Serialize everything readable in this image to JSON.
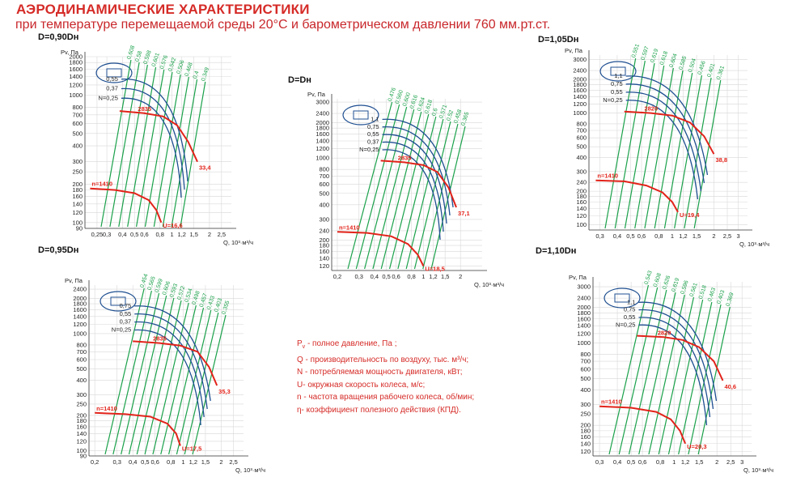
{
  "page": {
    "title": "АЭРОДИНАМИЧЕСКИЕ ХАРАКТЕРИСТИКИ",
    "subtitle": "при температуре перемещаемой среды 20°С и барометрическом давлении 760 мм.рт.ст."
  },
  "colors": {
    "red": "#e2231a",
    "blue": "#1f4f91",
    "green": "#1aa14a",
    "grid": "#d8d8d8",
    "text_red": "#d52b27"
  },
  "legend": {
    "items": [
      "P",
      "v",
      " - полное давление, Па ;",
      "Q - производительность по воздуху, тыс. м³/ч;",
      "N - потребляемая мощность двигателя, кВт;",
      "U- окружная скорость колеса, м/с;",
      "n - частота вращения рабочего колеса, об/мин;",
      "η- коэффициент полезного действия (КПД)."
    ]
  },
  "chart_data": [
    {
      "type": "line",
      "title": "D=0,90Dн",
      "xlabel": "Q, 10³·м³/ч",
      "ylabel": "Pv, Па",
      "xscale": "log",
      "yscale": "log",
      "xlim": [
        0.2,
        3.0
      ],
      "ylim": [
        90,
        2000
      ],
      "xticks": [
        "0,25",
        "0,3",
        "0,4",
        "0,5",
        "0,6",
        "0,8",
        "1",
        "1,2",
        "1,5",
        "2",
        "2,5"
      ],
      "yticks": [
        "2000",
        "1800",
        "1600",
        "1400",
        "1200",
        "1000",
        "800",
        "700",
        "600",
        "500",
        "400",
        "300",
        "250",
        "200",
        "180",
        "160",
        "140",
        "120",
        "100",
        "90"
      ],
      "power_labels": [
        "N=0,25",
        "0,37",
        "0,55"
      ],
      "efficiency_labels": [
        "0,608",
        "0,58",
        "0,598",
        "0,601",
        "0,576",
        "0,542",
        "0,506",
        "0,468",
        "0,4",
        "0,349"
      ],
      "n_high": "2835",
      "n_low": "n=1410",
      "u_high": "33,4",
      "u_low": "U=16,6",
      "series": [
        {
          "name": "2835",
          "x": [
            0.38,
            0.6,
            0.85,
            1.1,
            1.35,
            1.6
          ],
          "y": [
            750,
            720,
            680,
            580,
            430,
            300
          ]
        },
        {
          "name": "n=1410",
          "x": [
            0.22,
            0.35,
            0.5,
            0.65,
            0.75,
            0.82
          ],
          "y": [
            185,
            180,
            170,
            150,
            125,
            100
          ]
        }
      ]
    },
    {
      "type": "line",
      "title": "D=Dн",
      "xlabel": "Q, 10³·м³/ч",
      "ylabel": "Pv, Па",
      "xscale": "log",
      "yscale": "log",
      "xlim": [
        0.18,
        3.0
      ],
      "ylim": [
        110,
        3200
      ],
      "xticks": [
        "0,2",
        "0,3",
        "0,4",
        "0,5",
        "0,6",
        "0,8",
        "1",
        "1,2",
        "1,5",
        "2"
      ],
      "yticks": [
        "3000",
        "2400",
        "2000",
        "1800",
        "1600",
        "1400",
        "1200",
        "1000",
        "800",
        "700",
        "600",
        "500",
        "400",
        "300",
        "240",
        "200",
        "180",
        "160",
        "140",
        "120"
      ],
      "power_labels": [
        "N=0,25",
        "0,37",
        "0,55",
        "0,75",
        "1,1"
      ],
      "efficiency_labels": [
        "0,476",
        "0,560",
        "0,600",
        "0,616",
        "0,624",
        "0,618",
        "0,6",
        "0,571",
        "0,52",
        "0,458",
        "0,365"
      ],
      "n_high": "2835",
      "n_low": "n=1410",
      "u_high": "37,1",
      "u_low": "U=18,5",
      "series": [
        {
          "name": "2835",
          "x": [
            0.45,
            0.7,
            1.0,
            1.3,
            1.6,
            1.85
          ],
          "y": [
            950,
            920,
            870,
            760,
            560,
            380
          ]
        },
        {
          "name": "n=1410",
          "x": [
            0.2,
            0.35,
            0.55,
            0.75,
            0.9,
            1.0
          ],
          "y": [
            235,
            230,
            215,
            185,
            150,
            120
          ]
        }
      ]
    },
    {
      "type": "line",
      "title": "D=1,05Dн",
      "xlabel": "Q, 10³·м³/ч",
      "ylabel": "Pv, Па",
      "xscale": "log",
      "yscale": "log",
      "xlim": [
        0.25,
        3.5
      ],
      "ylim": [
        90,
        3300
      ],
      "xticks": [
        "0,3",
        "0,4",
        "0,5",
        "0,6",
        "0,8",
        "1",
        "1,2",
        "1,5",
        "2",
        "2,5",
        "3"
      ],
      "yticks": [
        "3000",
        "2400",
        "2000",
        "1800",
        "1600",
        "1400",
        "1200",
        "1000",
        "800",
        "700",
        "600",
        "500",
        "400",
        "300",
        "240",
        "200",
        "180",
        "160",
        "140",
        "120",
        "100"
      ],
      "power_labels": [
        "N=0,25",
        "0,55",
        "0,75",
        "1,1"
      ],
      "efficiency_labels": [
        "0,551",
        "0,597",
        "0,619",
        "0,618",
        "0,604",
        "0,585",
        "0,504",
        "0,456",
        "0,401",
        "0,361"
      ],
      "n_high": "2820",
      "n_low": "n=1410",
      "u_high": "38,8",
      "u_low": "U=19,4",
      "series": [
        {
          "name": "2820",
          "x": [
            0.45,
            0.7,
            1.0,
            1.35,
            1.7,
            2.0
          ],
          "y": [
            1030,
            1000,
            950,
            820,
            620,
            430
          ]
        },
        {
          "name": "n=1410",
          "x": [
            0.28,
            0.45,
            0.65,
            0.85,
            1.0,
            1.1
          ],
          "y": [
            250,
            245,
            225,
            195,
            160,
            130
          ]
        }
      ]
    },
    {
      "type": "line",
      "title": "D=0,95Dн",
      "xlabel": "Q, 10³·м³/ч",
      "ylabel": "Pv, Па",
      "xscale": "log",
      "yscale": "log",
      "xlim": [
        0.18,
        3.0
      ],
      "ylim": [
        90,
        2600
      ],
      "xticks": [
        "0,2",
        "0,3",
        "0,4",
        "0,5",
        "0,6",
        "0,8",
        "1",
        "1,2",
        "1,5",
        "2",
        "2,5"
      ],
      "yticks": [
        "2400",
        "2000",
        "1800",
        "1600",
        "1400",
        "1200",
        "1000",
        "800",
        "700",
        "600",
        "500",
        "400",
        "300",
        "250",
        "200",
        "180",
        "160",
        "140",
        "120",
        "100",
        "90"
      ],
      "power_labels": [
        "N=0,25",
        "0,37",
        "0,55",
        "0,75"
      ],
      "efficiency_labels": [
        "0,454",
        "0,565",
        "0,599",
        "0,606",
        "0,593",
        "0,572",
        "0,534",
        "0,498",
        "0,457",
        "0,433",
        "0,403",
        "0,355"
      ],
      "n_high": "2835",
      "n_low": "n=1410",
      "u_high": "35,3",
      "u_low": "U=17,5",
      "series": [
        {
          "name": "2835",
          "x": [
            0.4,
            0.65,
            0.95,
            1.3,
            1.6,
            1.85
          ],
          "y": [
            860,
            830,
            790,
            700,
            520,
            360
          ]
        },
        {
          "name": "n=1410",
          "x": [
            0.2,
            0.35,
            0.55,
            0.75,
            0.88,
            0.95
          ],
          "y": [
            210,
            205,
            195,
            170,
            140,
            110
          ]
        }
      ]
    },
    {
      "type": "line",
      "title": "D=1,10Dн",
      "xlabel": "Q, 10³·м³/ч",
      "ylabel": "Pv, Па",
      "xscale": "log",
      "yscale": "log",
      "xlim": [
        0.27,
        3.5
      ],
      "ylim": [
        110,
        3300
      ],
      "xticks": [
        "0,3",
        "0,4",
        "0,5",
        "0,6",
        "0,8",
        "1",
        "1,2",
        "1,5",
        "2",
        "2,5",
        "3"
      ],
      "yticks": [
        "3000",
        "2400",
        "2000",
        "1800",
        "1600",
        "1400",
        "1200",
        "1000",
        "800",
        "700",
        "600",
        "500",
        "400",
        "300",
        "250",
        "200",
        "180",
        "160",
        "140",
        "120"
      ],
      "power_labels": [
        "N=0,25",
        "0,55",
        "0,75",
        "1,1"
      ],
      "efficiency_labels": [
        "0,543",
        "0,608",
        "0,626",
        "0,619",
        "0,596",
        "0,561",
        "0,518",
        "0,463",
        "0,403",
        "0,369"
      ],
      "n_high": "2820",
      "n_low": "n=1410",
      "u_high": "40,6",
      "u_low": "U=20,3",
      "series": [
        {
          "name": "2820",
          "x": [
            0.55,
            0.85,
            1.15,
            1.5,
            1.9,
            2.2
          ],
          "y": [
            1150,
            1120,
            1060,
            920,
            700,
            480
          ]
        },
        {
          "name": "n=1410",
          "x": [
            0.3,
            0.5,
            0.75,
            0.95,
            1.1,
            1.2
          ],
          "y": [
            290,
            282,
            260,
            225,
            180,
            140
          ]
        }
      ]
    }
  ]
}
